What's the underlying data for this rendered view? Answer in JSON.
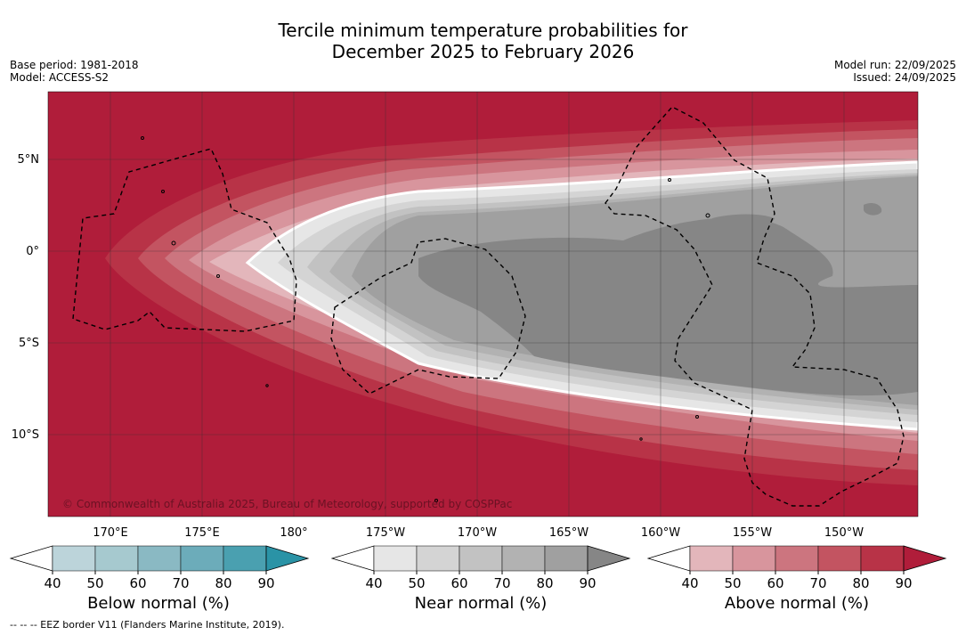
{
  "title_line1": "Tercile minimum temperature probabilities for",
  "title_line2": "December 2025 to February 2026",
  "base_period": "Base period: 1981-2018",
  "model": "Model: ACCESS-S2",
  "model_run": "Model run: 22/09/2025",
  "issued": "Issued: 24/09/2025",
  "copyright": "© Commonwealth of Australia 2025, Bureau of Meteorology, supported by COSPPac",
  "footnote": "--  --  -- EEZ border V11 (Flanders Marine Institute, 2019).",
  "map": {
    "lat_labels": [
      "5°N",
      "0°",
      "5°S",
      "10°S"
    ],
    "lon_labels": [
      "170°E",
      "175°E",
      "180°",
      "175°W",
      "170°W",
      "165°W",
      "160°W",
      "155°W",
      "150°W"
    ],
    "background_color": "#b01d3a"
  },
  "colorbars": [
    {
      "name": "below",
      "label": "Below normal (%)",
      "ticks": [
        "40",
        "50",
        "60",
        "70",
        "80",
        "90"
      ],
      "colors": [
        "#ffffff",
        "#bcd4da",
        "#a6c9cf",
        "#8ab9c3",
        "#6cacba",
        "#4aa0b0",
        "#2a93a6"
      ]
    },
    {
      "name": "near",
      "label": "Near normal (%)",
      "ticks": [
        "40",
        "50",
        "60",
        "70",
        "80",
        "90"
      ],
      "colors": [
        "#ffffff",
        "#e6e6e6",
        "#d4d4d4",
        "#c2c2c2",
        "#b2b2b2",
        "#a0a0a0",
        "#868686"
      ]
    },
    {
      "name": "above",
      "label": "Above normal (%)",
      "ticks": [
        "40",
        "50",
        "60",
        "70",
        "80",
        "90"
      ],
      "colors": [
        "#ffffff",
        "#e3b6bb",
        "#d8959d",
        "#cc757f",
        "#c35461",
        "#b83347",
        "#b01d3a"
      ]
    }
  ]
}
